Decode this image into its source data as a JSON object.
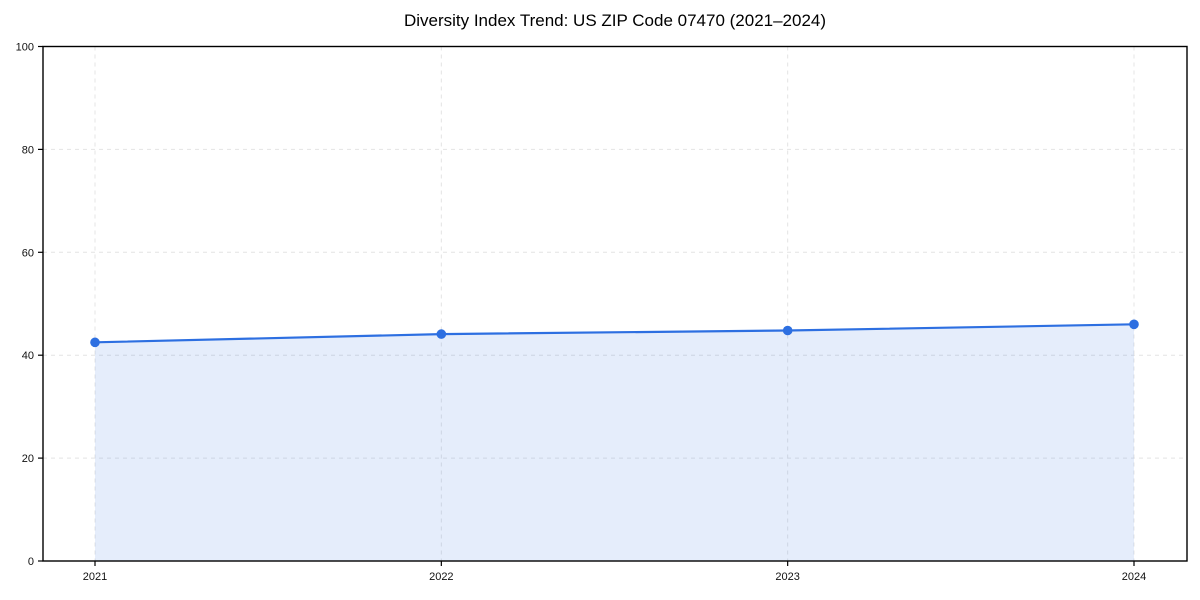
{
  "page": {
    "background": "#ffffff"
  },
  "chart_data": {
    "type": "area",
    "title": "Diversity Index Trend: US ZIP Code 07470 (2021–2024)",
    "categories": [
      "2021",
      "2022",
      "2023",
      "2024"
    ],
    "values": [
      42.5,
      44.1,
      44.8,
      46.0
    ],
    "xlabel": "",
    "ylabel": "",
    "ylim": [
      0,
      100
    ],
    "yticks": [
      0,
      20,
      40,
      60,
      80,
      100
    ],
    "grid": "dashed-both-axes",
    "legend": "none",
    "marker": "circle",
    "colors": {
      "line": "#2d6fe1",
      "fill": "rgba(45,111,225,0.12)",
      "grid": "#e4e4e4",
      "axis": "#000000",
      "text": "#111111"
    }
  }
}
